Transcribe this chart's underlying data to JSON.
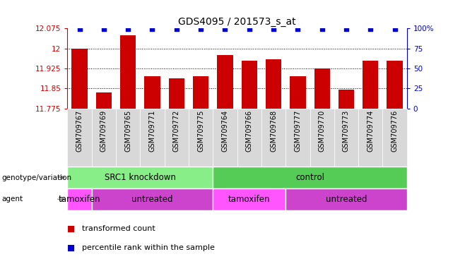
{
  "title": "GDS4095 / 201573_s_at",
  "samples": [
    "GSM709767",
    "GSM709769",
    "GSM709765",
    "GSM709771",
    "GSM709772",
    "GSM709775",
    "GSM709764",
    "GSM709766",
    "GSM709768",
    "GSM709777",
    "GSM709770",
    "GSM709773",
    "GSM709774",
    "GSM709776"
  ],
  "bar_values": [
    12.0,
    11.835,
    12.05,
    11.895,
    11.888,
    11.895,
    11.975,
    11.955,
    11.958,
    11.895,
    11.925,
    11.845,
    11.955,
    11.955
  ],
  "y_min": 11.775,
  "y_max": 12.075,
  "y_ticks": [
    11.775,
    11.85,
    11.925,
    12.0,
    12.075
  ],
  "y_tick_labels": [
    "11.775",
    "11.85",
    "11.925",
    "12",
    "12.075"
  ],
  "y2_ticks": [
    0,
    25,
    50,
    75,
    100
  ],
  "y2_tick_labels": [
    "0",
    "25",
    "50",
    "75",
    "100%"
  ],
  "bar_color": "#cc0000",
  "dot_color": "#0000cc",
  "xlabel_color": "#cc0000",
  "y2_label_color": "#0000cc",
  "genotype_groups": [
    {
      "label": "SRC1 knockdown",
      "start": 0,
      "end": 6,
      "color": "#88ee88"
    },
    {
      "label": "control",
      "start": 6,
      "end": 14,
      "color": "#55cc55"
    }
  ],
  "agent_groups": [
    {
      "label": "tamoxifen",
      "start": 0,
      "end": 1,
      "color": "#ff55ff"
    },
    {
      "label": "untreated",
      "start": 1,
      "end": 6,
      "color": "#cc44cc"
    },
    {
      "label": "tamoxifen",
      "start": 6,
      "end": 9,
      "color": "#ff55ff"
    },
    {
      "label": "untreated",
      "start": 9,
      "end": 14,
      "color": "#cc44cc"
    }
  ],
  "legend_items": [
    {
      "color": "#cc0000",
      "label": "transformed count"
    },
    {
      "color": "#0000cc",
      "label": "percentile rank within the sample"
    }
  ],
  "annotation_genotype": "genotype/variation",
  "annotation_agent": "agent",
  "sample_bg_color": "#d8d8d8"
}
